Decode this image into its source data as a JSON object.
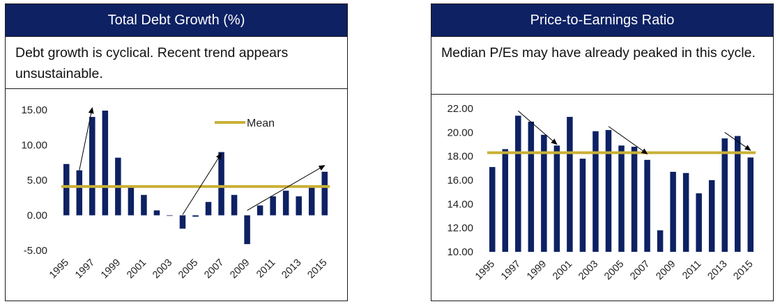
{
  "charts": [
    {
      "id": "debt",
      "title": "Total Debt Growth (%)",
      "caption": "Debt growth is cyclical. Recent trend appears unsustainable.",
      "legend_label": "Mean",
      "bar_color": "#0d2163",
      "mean_color": "#c9b037"
    },
    {
      "id": "pe",
      "title": "Price-to-Earnings Ratio",
      "caption": "Median P/Es may have already peaked in this cycle.",
      "bar_color": "#0d2163",
      "mean_color": "#c9b037"
    }
  ],
  "chart_data": [
    {
      "type": "bar",
      "title": "Total Debt Growth (%)",
      "categories": [
        "1995",
        "1996",
        "1997",
        "1998",
        "1999",
        "2000",
        "2001",
        "2002",
        "2003",
        "2004",
        "2005",
        "2006",
        "2007",
        "2008",
        "2009",
        "2010",
        "2011",
        "2012",
        "2013",
        "2014",
        "2015"
      ],
      "tick_labels": [
        "1995",
        "1997",
        "1999",
        "2001",
        "2003",
        "2005",
        "2007",
        "2009",
        "2011",
        "2013",
        "2015"
      ],
      "values": [
        7.3,
        6.4,
        14.0,
        14.9,
        8.2,
        4.0,
        2.9,
        0.7,
        0.0,
        -1.9,
        -0.2,
        1.9,
        9.0,
        2.9,
        -4.1,
        1.4,
        2.7,
        3.5,
        2.7,
        4.0,
        6.2
      ],
      "mean": 4.1,
      "ylim": [
        -5,
        15
      ],
      "yticks": [
        "-5.00",
        "0.00",
        "5.00",
        "10.00",
        "15.00"
      ],
      "legend": "top-right",
      "grid": false,
      "annotations": [
        {
          "type": "arrow",
          "from": [
            "1996",
            6.4
          ],
          "to": [
            "1997",
            15.3
          ]
        },
        {
          "type": "arrow",
          "from": [
            "2004",
            0.1
          ],
          "to": [
            "2007",
            8.8
          ]
        },
        {
          "type": "arrow",
          "from": [
            "2009",
            0.7
          ],
          "to": [
            "2015",
            7.1
          ]
        }
      ]
    },
    {
      "type": "bar",
      "title": "Price-to-Earnings Ratio",
      "categories": [
        "1995",
        "1996",
        "1997",
        "1998",
        "1999",
        "2000",
        "2001",
        "2002",
        "2003",
        "2004",
        "2005",
        "2006",
        "2007",
        "2008",
        "2009",
        "2010",
        "2011",
        "2012",
        "2013",
        "2014",
        "2015"
      ],
      "tick_labels": [
        "1995",
        "1997",
        "1999",
        "2001",
        "2003",
        "2005",
        "2007",
        "2009",
        "2011",
        "2013",
        "2015"
      ],
      "values": [
        17.1,
        18.6,
        21.4,
        20.9,
        19.8,
        18.9,
        21.3,
        17.8,
        20.1,
        20.2,
        18.9,
        18.8,
        17.7,
        11.8,
        16.7,
        16.6,
        14.9,
        16.0,
        19.5,
        19.7,
        17.9
      ],
      "mean": 18.3,
      "ylim": [
        10,
        22
      ],
      "yticks": [
        "10.00",
        "12.00",
        "14.00",
        "16.00",
        "18.00",
        "20.00",
        "22.00"
      ],
      "grid": false,
      "annotations": [
        {
          "type": "arrow",
          "from": [
            "1997",
            21.8
          ],
          "to": [
            "2000",
            19.0
          ]
        },
        {
          "type": "arrow",
          "from": [
            "2004",
            20.5
          ],
          "to": [
            "2007",
            18.2
          ]
        },
        {
          "type": "arrow",
          "from": [
            "2013",
            20.0
          ],
          "to": [
            "2015",
            18.5
          ]
        }
      ]
    }
  ]
}
